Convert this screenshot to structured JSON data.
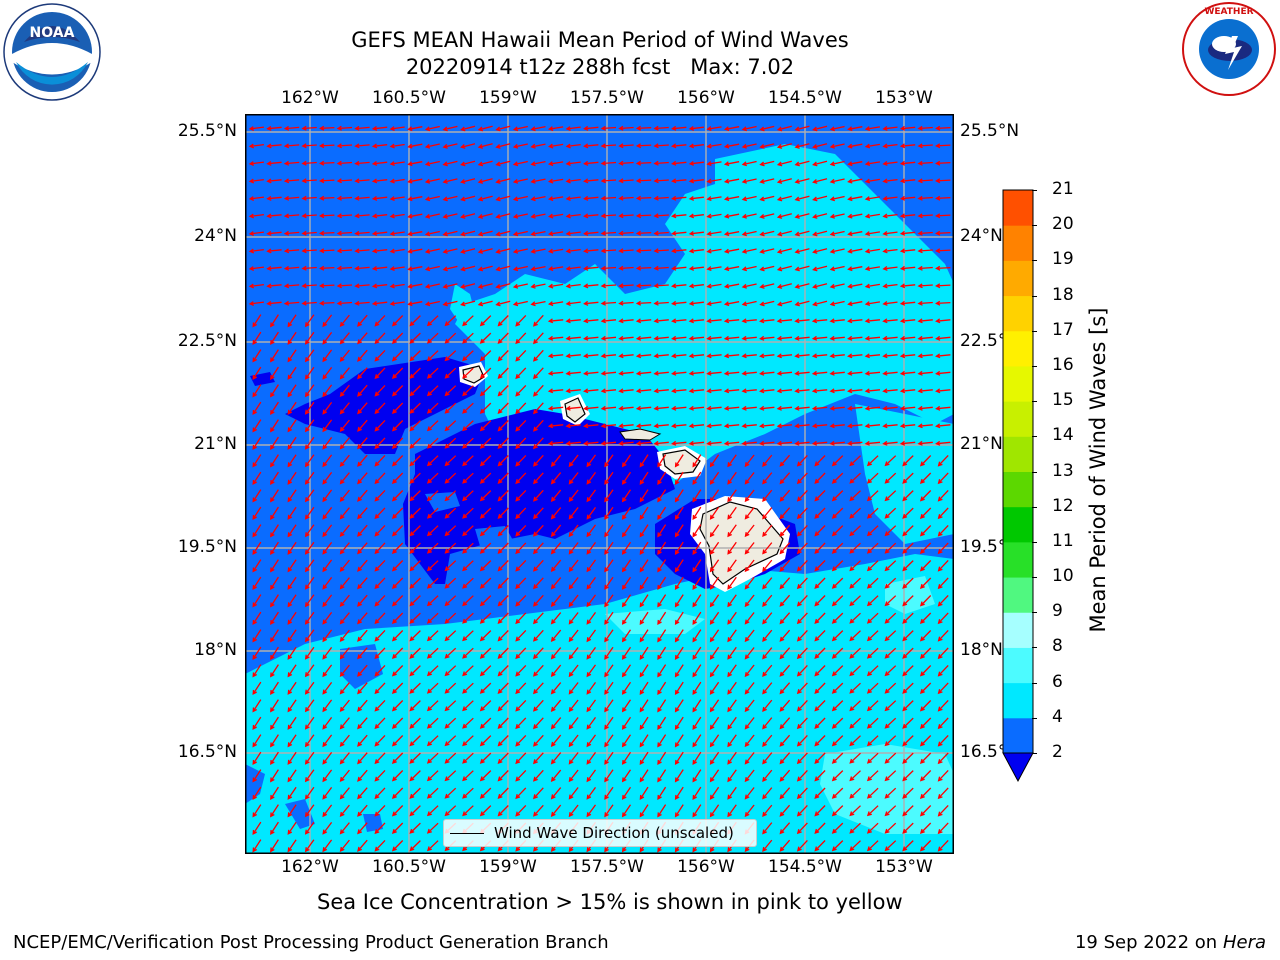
{
  "header": {
    "title_line1": "GEFS MEAN Hawaii Mean Period of Wind Waves",
    "title_line2": "20220914 t12z 288h fcst   Max: 7.02"
  },
  "logos": {
    "left": {
      "name": "noaa-logo",
      "text": "NOAA"
    },
    "right": {
      "name": "nws-logo",
      "text": "NATIONAL WEATHER SERVICE"
    }
  },
  "map": {
    "lon_labels": [
      "162°W",
      "160.5°W",
      "159°W",
      "157.5°W",
      "156°W",
      "154.5°W",
      "153°W"
    ],
    "lat_labels_left": [
      "25.5°N",
      "24°N",
      "22.5°N",
      "21°N",
      "19.5°N",
      "18°N",
      "16.5°N"
    ],
    "lat_labels_right": [
      "25.5°N",
      "24°N",
      "22.5°",
      "21°N",
      "19.5°",
      "18°N",
      "16.5°"
    ],
    "legend": "Wind Wave Direction (unscaled)",
    "arrow_color": "#ff0000",
    "gridline_color": "#b0b0b0",
    "land_color": "#efece0"
  },
  "colorbar": {
    "label": "Mean Period of Wind Waves [s]",
    "ticks": [
      "2",
      "4",
      "6",
      "8",
      "9",
      "10",
      "11",
      "12",
      "13",
      "14",
      "15",
      "16",
      "17",
      "18",
      "19",
      "20",
      "21"
    ],
    "colors": [
      "#0a6cff",
      "#00e8ff",
      "#4cfbff",
      "#a6ffff",
      "#50f880",
      "#28e028",
      "#00c800",
      "#5cd800",
      "#a0e600",
      "#c8f000",
      "#e6f800",
      "#fff000",
      "#ffd200",
      "#ffaa00",
      "#ff8200",
      "#ff5000",
      "#ff1e00"
    ],
    "under_color": "#0000f0"
  },
  "footer": {
    "note": "Sea Ice Concentration > 15% is shown in pink to yellow",
    "left": "NCEP/EMC/Verification Post Processing Product Generation Branch",
    "date": "19 Sep 2022 on",
    "machine": "Hera"
  }
}
